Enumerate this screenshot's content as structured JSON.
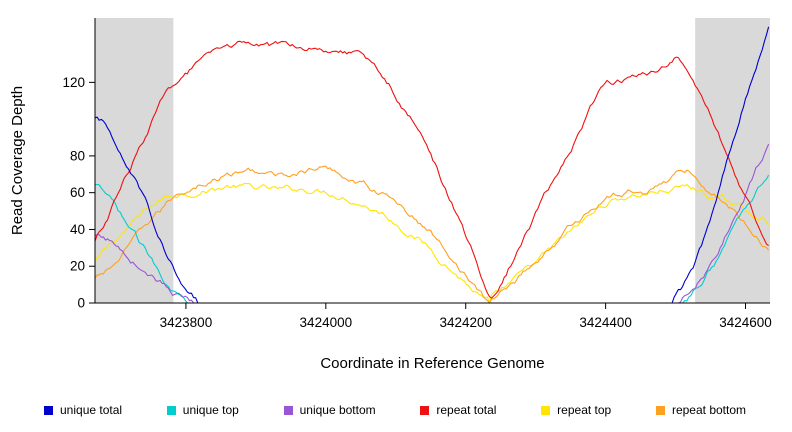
{
  "axis": {
    "x_label": "Coordinate in Reference Genome",
    "y_label": "Read Coverage Depth"
  },
  "chart_data": {
    "type": "line",
    "title": "",
    "xlabel": "Coordinate in Reference Genome",
    "ylabel": "Read Coverage Depth",
    "xlim": [
      3423670,
      3424635
    ],
    "ylim": [
      0,
      155
    ],
    "x_ticks": [
      {
        "value": 3423800,
        "label": "3423800"
      },
      {
        "value": 3424000,
        "label": "3424000"
      },
      {
        "value": 3424200,
        "label": "3424200"
      },
      {
        "value": 3424400,
        "label": "3424400"
      },
      {
        "value": 3424600,
        "label": "3424600"
      }
    ],
    "y_ticks": [
      {
        "value": 0,
        "label": "0"
      },
      {
        "value": 20,
        "label": "20"
      },
      {
        "value": 40,
        "label": "40"
      },
      {
        "value": 60,
        "label": "60"
      },
      {
        "value": 80,
        "label": "80"
      },
      {
        "value": 120,
        "label": "120"
      }
    ],
    "grid": false,
    "legend_position": "bottom",
    "shade_color": "#d9d9d9",
    "shaded_regions": [
      [
        3423670,
        3423782
      ],
      [
        3424528,
        3424635
      ]
    ],
    "series": [
      {
        "name": "unique total",
        "color": "#0000CD",
        "draw_order": 6,
        "points": [
          [
            3423670,
            100
          ],
          [
            3423685,
            97
          ],
          [
            3423700,
            88
          ],
          [
            3423715,
            78
          ],
          [
            3423730,
            66
          ],
          [
            3423745,
            55
          ],
          [
            3423760,
            40
          ],
          [
            3423775,
            26
          ],
          [
            3423790,
            13
          ],
          [
            3423805,
            4
          ],
          [
            3423818,
            0
          ],
          [
            3424495,
            0
          ],
          [
            3424510,
            6
          ],
          [
            3424525,
            16
          ],
          [
            3424540,
            32
          ],
          [
            3424555,
            52
          ],
          [
            3424570,
            72
          ],
          [
            3424585,
            92
          ],
          [
            3424600,
            112
          ],
          [
            3424615,
            130
          ],
          [
            3424625,
            142
          ],
          [
            3424635,
            152
          ]
        ]
      },
      {
        "name": "unique top",
        "color": "#00CDCD",
        "draw_order": 3,
        "points": [
          [
            3423670,
            64
          ],
          [
            3423690,
            56
          ],
          [
            3423710,
            45
          ],
          [
            3423730,
            34
          ],
          [
            3423750,
            23
          ],
          [
            3423770,
            13
          ],
          [
            3423790,
            5
          ],
          [
            3423810,
            0
          ],
          [
            3424505,
            0
          ],
          [
            3424520,
            4
          ],
          [
            3424540,
            12
          ],
          [
            3424560,
            24
          ],
          [
            3424580,
            38
          ],
          [
            3424600,
            52
          ],
          [
            3424620,
            64
          ],
          [
            3424635,
            74
          ]
        ]
      },
      {
        "name": "unique bottom",
        "color": "#9955D4",
        "draw_order": 4,
        "points": [
          [
            3423670,
            36
          ],
          [
            3423690,
            33
          ],
          [
            3423710,
            28
          ],
          [
            3423730,
            22
          ],
          [
            3423750,
            16
          ],
          [
            3423770,
            10
          ],
          [
            3423790,
            4
          ],
          [
            3423812,
            0
          ],
          [
            3424505,
            0
          ],
          [
            3424520,
            6
          ],
          [
            3424540,
            15
          ],
          [
            3424560,
            28
          ],
          [
            3424580,
            44
          ],
          [
            3424600,
            60
          ],
          [
            3424620,
            76
          ],
          [
            3424635,
            88
          ]
        ]
      },
      {
        "name": "repeat total",
        "color": "#EE1111",
        "draw_order": 5,
        "points": [
          [
            3423670,
            33
          ],
          [
            3423690,
            48
          ],
          [
            3423710,
            65
          ],
          [
            3423730,
            82
          ],
          [
            3423750,
            98
          ],
          [
            3423770,
            112
          ],
          [
            3423790,
            122
          ],
          [
            3423810,
            128
          ],
          [
            3423830,
            132
          ],
          [
            3423860,
            138
          ],
          [
            3423890,
            141
          ],
          [
            3423920,
            138
          ],
          [
            3423950,
            140
          ],
          [
            3423980,
            141
          ],
          [
            3424010,
            140
          ],
          [
            3424040,
            138
          ],
          [
            3424060,
            132
          ],
          [
            3424080,
            124
          ],
          [
            3424100,
            114
          ],
          [
            3424120,
            102
          ],
          [
            3424140,
            88
          ],
          [
            3424160,
            72
          ],
          [
            3424180,
            55
          ],
          [
            3424200,
            36
          ],
          [
            3424220,
            16
          ],
          [
            3424235,
            1
          ],
          [
            3424245,
            3
          ],
          [
            3424260,
            16
          ],
          [
            3424280,
            32
          ],
          [
            3424300,
            48
          ],
          [
            3424320,
            62
          ],
          [
            3424340,
            76
          ],
          [
            3424360,
            92
          ],
          [
            3424380,
            108
          ],
          [
            3424400,
            119
          ],
          [
            3424420,
            121
          ],
          [
            3424440,
            122
          ],
          [
            3424460,
            124
          ],
          [
            3424480,
            128
          ],
          [
            3424500,
            133
          ],
          [
            3424515,
            128
          ],
          [
            3424530,
            116
          ],
          [
            3424550,
            100
          ],
          [
            3424570,
            82
          ],
          [
            3424590,
            64
          ],
          [
            3424610,
            48
          ],
          [
            3424625,
            38
          ],
          [
            3424635,
            32
          ]
        ]
      },
      {
        "name": "repeat top",
        "color": "#FFE500",
        "draw_order": 1,
        "points": [
          [
            3423670,
            22
          ],
          [
            3423690,
            30
          ],
          [
            3423710,
            38
          ],
          [
            3423730,
            45
          ],
          [
            3423750,
            52
          ],
          [
            3423770,
            57
          ],
          [
            3423790,
            60
          ],
          [
            3423820,
            62
          ],
          [
            3423860,
            64
          ],
          [
            3423900,
            62
          ],
          [
            3423940,
            60
          ],
          [
            3423980,
            62
          ],
          [
            3424020,
            60
          ],
          [
            3424050,
            56
          ],
          [
            3424080,
            50
          ],
          [
            3424110,
            42
          ],
          [
            3424140,
            33
          ],
          [
            3424170,
            23
          ],
          [
            3424200,
            12
          ],
          [
            3424225,
            2
          ],
          [
            3424235,
            0
          ],
          [
            3424250,
            5
          ],
          [
            3424280,
            14
          ],
          [
            3424310,
            24
          ],
          [
            3424340,
            34
          ],
          [
            3424370,
            44
          ],
          [
            3424400,
            54
          ],
          [
            3424430,
            58
          ],
          [
            3424460,
            60
          ],
          [
            3424490,
            62
          ],
          [
            3424515,
            63
          ],
          [
            3424540,
            60
          ],
          [
            3424570,
            55
          ],
          [
            3424600,
            50
          ],
          [
            3424635,
            45
          ]
        ]
      },
      {
        "name": "repeat bottom",
        "color": "#FFA020",
        "draw_order": 2,
        "points": [
          [
            3423670,
            13
          ],
          [
            3423690,
            18
          ],
          [
            3423710,
            26
          ],
          [
            3423730,
            35
          ],
          [
            3423750,
            44
          ],
          [
            3423770,
            52
          ],
          [
            3423790,
            60
          ],
          [
            3423820,
            66
          ],
          [
            3423860,
            70
          ],
          [
            3423900,
            72
          ],
          [
            3423930,
            68
          ],
          [
            3423960,
            71
          ],
          [
            3423990,
            73
          ],
          [
            3424020,
            70
          ],
          [
            3424050,
            66
          ],
          [
            3424080,
            60
          ],
          [
            3424110,
            52
          ],
          [
            3424140,
            42
          ],
          [
            3424170,
            30
          ],
          [
            3424200,
            17
          ],
          [
            3424225,
            3
          ],
          [
            3424235,
            0
          ],
          [
            3424250,
            6
          ],
          [
            3424280,
            16
          ],
          [
            3424310,
            27
          ],
          [
            3424340,
            38
          ],
          [
            3424370,
            48
          ],
          [
            3424400,
            57
          ],
          [
            3424430,
            60
          ],
          [
            3424460,
            62
          ],
          [
            3424490,
            68
          ],
          [
            3424515,
            72
          ],
          [
            3424540,
            66
          ],
          [
            3424570,
            56
          ],
          [
            3424600,
            44
          ],
          [
            3424620,
            36
          ],
          [
            3424635,
            31
          ]
        ]
      }
    ]
  },
  "legend": {
    "items": [
      {
        "label": "unique total",
        "color": "#0000CD"
      },
      {
        "label": "unique top",
        "color": "#00CDCD"
      },
      {
        "label": "unique bottom",
        "color": "#9955D4"
      },
      {
        "label": "repeat total",
        "color": "#EE1111"
      },
      {
        "label": "repeat top",
        "color": "#FFE500"
      },
      {
        "label": "repeat bottom",
        "color": "#FFA020"
      }
    ]
  }
}
